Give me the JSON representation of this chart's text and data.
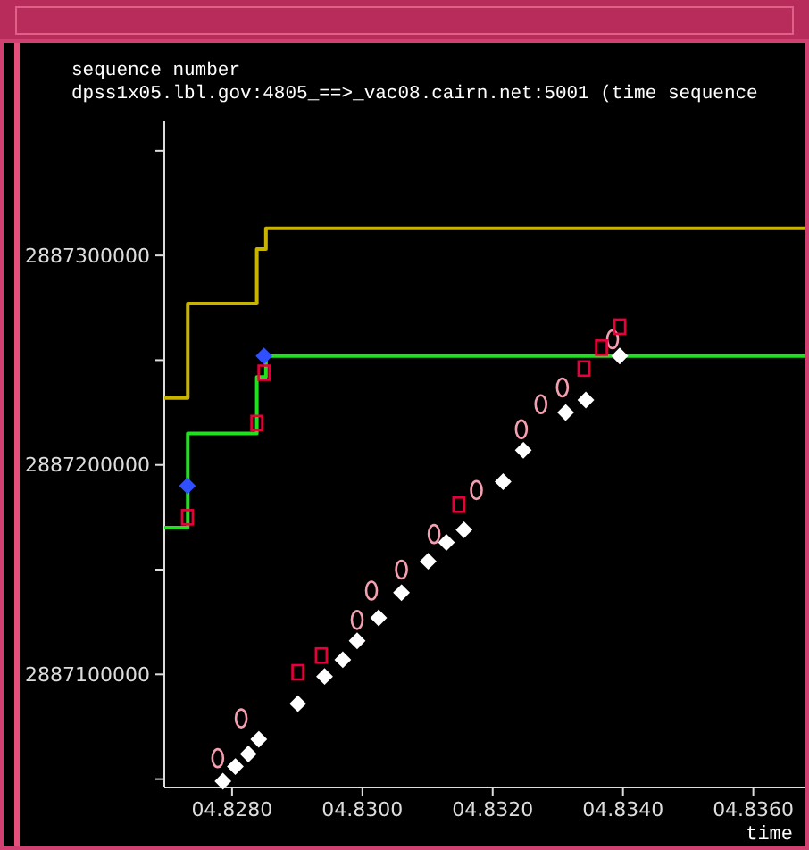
{
  "chart_data": {
    "type": "scatter",
    "title": "dpss1x05.lbl.gov:4805_==>_vac08.cairn.net:5001 (time sequence",
    "xlabel": "time",
    "ylabel": "sequence number",
    "xlim": [
      4.82696,
      4.8368
    ],
    "ylim": [
      2887046000,
      2887364000
    ],
    "xticks": [
      {
        "value": 4.828,
        "label": "04.8280"
      },
      {
        "value": 4.83,
        "label": "04.8300"
      },
      {
        "value": 4.832,
        "label": "04.8320"
      },
      {
        "value": 4.834,
        "label": "04.8340"
      },
      {
        "value": 4.836,
        "label": "04.8360"
      }
    ],
    "yticks": [
      {
        "value": 2887050000,
        "label": null
      },
      2887100000,
      {
        "value": 2887150000,
        "label": null
      },
      2887200000,
      {
        "value": 2887250000,
        "label": null
      },
      2887300000,
      {
        "value": 2887350000,
        "label": null
      }
    ],
    "series": [
      {
        "type": "step",
        "color": "#c8b400",
        "marker": "none",
        "x": [
          4.82696,
          4.82732,
          4.82838,
          4.82852,
          4.8368
        ],
        "values": [
          2887232000,
          2887277000,
          2887303000,
          2887313000,
          2887313000
        ]
      },
      {
        "type": "step",
        "color": "#20e020",
        "marker": "none",
        "x": [
          4.82696,
          4.82732,
          4.82838,
          4.82852,
          4.8368
        ],
        "values": [
          2887170000,
          2887215000,
          2887242000,
          2887252000,
          2887252000
        ]
      },
      {
        "color": "#ffffff",
        "marker": "diamond",
        "x": [
          4.82786,
          4.82805,
          4.82825,
          4.82841,
          4.82901,
          4.82942,
          4.8297,
          4.82992,
          4.83025,
          4.8306,
          4.83101,
          4.83129,
          4.83156,
          4.83216,
          4.83247,
          4.83312,
          4.83343,
          4.83395
        ],
        "values": [
          2887049000,
          2887056000,
          2887062000,
          2887069000,
          2887086000,
          2887099000,
          2887107000,
          2887116000,
          2887127000,
          2887139000,
          2887154000,
          2887163000,
          2887169000,
          2887192000,
          2887207000,
          2887225000,
          2887231000,
          2887252000
        ]
      },
      {
        "color": "#f4a0b0",
        "marker": "circle",
        "x": [
          4.82778,
          4.82814,
          4.82992,
          4.83014,
          4.8306,
          4.8311,
          4.83175,
          4.83244,
          4.83274,
          4.83307,
          4.83384
        ],
        "values": [
          2887060000,
          2887079000,
          2887126000,
          2887140000,
          2887150000,
          2887167000,
          2887188000,
          2887217000,
          2887229000,
          2887237000,
          2887260000
        ]
      },
      {
        "color": "#e8003c",
        "marker": "square",
        "x": [
          4.82901,
          4.82937,
          4.83148,
          4.8334,
          4.83367,
          4.83395,
          4.827315,
          4.82838,
          4.82849
        ],
        "values": [
          2887101000,
          2887109000,
          2887181000,
          2887246000,
          2887256000,
          2887266000,
          2887175000,
          2887220000,
          2887244000
        ]
      },
      {
        "color": "#3050ff",
        "marker": "diamond",
        "x": [
          4.827315,
          4.82849
        ],
        "values": [
          2887190000,
          2887252000
        ]
      }
    ]
  }
}
